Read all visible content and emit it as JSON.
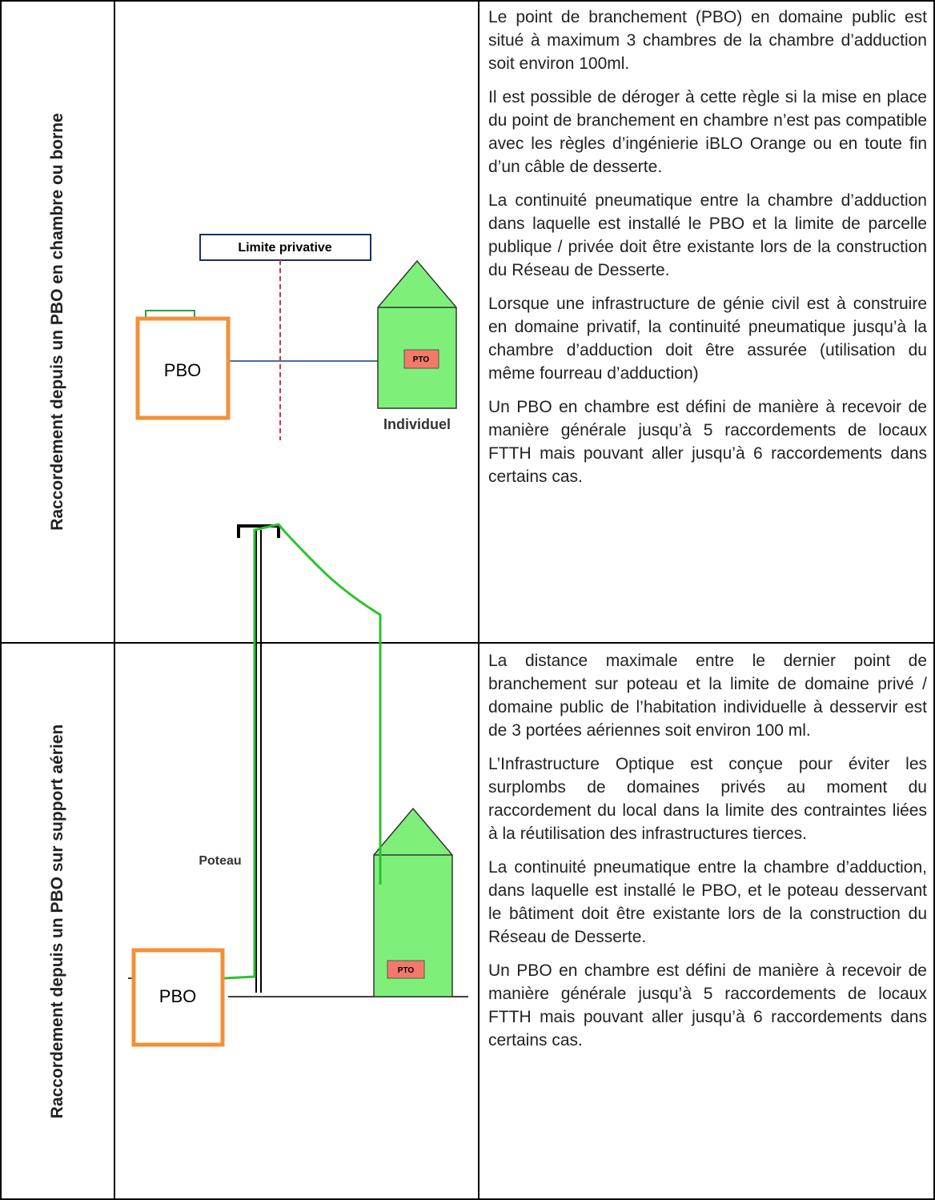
{
  "table": {
    "rows": [
      {
        "label": "Raccordement depuis un PBO en chambre ou borne",
        "diagram": {
          "boundary": "Limite privative",
          "pbo": "PBO",
          "pto": "PTO",
          "building": "Individuel"
        },
        "paragraphs": [
          "Le point de branchement (PBO) en domaine public est situé à maximum 3 chambres de la chambre d’adduction soit environ 100ml.",
          "Il est possible de déroger à cette règle si la mise en place du point de branchement en chambre n’est pas compatible avec les règles d’ingénierie iBLO Orange ou en toute fin d’un câble de desserte.",
          "La continuité pneumatique entre la chambre d’adduction dans laquelle est installé le PBO et la limite de parcelle publique / privée doit être existante lors de la construction du Réseau de Desserte.",
          "Lorsque une infrastructure de génie civil est à construire en domaine privatif, la continuité pneumatique jusqu’à la chambre d’adduction doit être assurée (utilisation du même fourreau d’adduction)",
          "Un PBO en chambre est défini de manière à recevoir  de manière générale jusqu’à 5 raccordements de locaux FTTH mais pouvant aller jusqu’à 6 raccordements dans certains cas."
        ]
      },
      {
        "label": "Raccordement depuis un PBO sur support aérien",
        "diagram": {
          "pole": "Poteau",
          "pbo": "PBO",
          "pto": "PTO"
        },
        "paragraphs": [
          "La distance maximale entre le dernier point de branchement sur poteau et la limite de domaine privé / domaine public de l’habitation individuelle à desservir est de 3 portées aériennes soit environ 100 ml.",
          "L’Infrastructure Optique est conçue pour éviter les surplombs de domaines privés au moment du raccordement du local dans la limite des contraintes liées à la réutilisation des infrastructures tierces.",
          "La continuité pneumatique entre la chambre d’adduction, dans laquelle est installé le PBO, et le poteau desservant le bâtiment doit être existante lors de la construction du Réseau de Desserte.",
          "Un PBO en chambre est défini de manière à recevoir  de manière générale jusqu’à 5 raccordements de locaux FTTH mais pouvant aller jusqu’à 6 raccordements dans certains cas."
        ]
      }
    ]
  }
}
